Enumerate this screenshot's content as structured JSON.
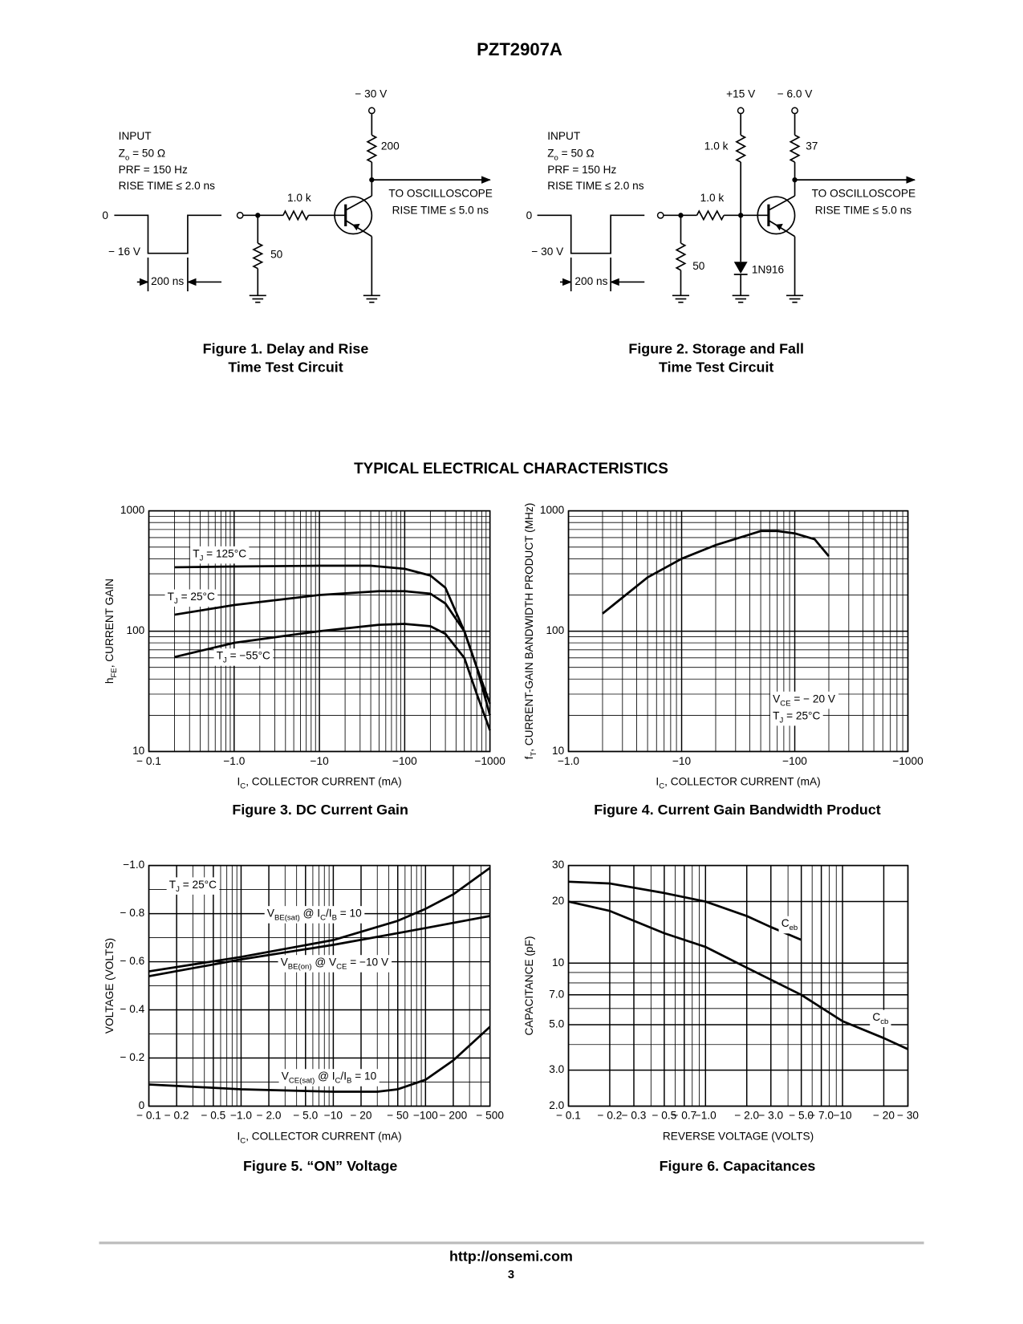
{
  "header": {
    "title": "PZT2907A"
  },
  "figure_1": {
    "supply": "− 30 V",
    "input": [
      "INPUT",
      [
        "Z",
        "o",
        " = 50 Ω"
      ],
      "PRF = 150 Hz",
      "RISE TIME ≤ 2.0 ns"
    ],
    "levels": [
      "0",
      "− 16 V"
    ],
    "pulse_width": "200 ns",
    "resistors": [
      "200",
      "1.0 k",
      "50"
    ],
    "output": [
      "TO OSCILLOSCOPE",
      "RISE TIME ≤ 5.0 ns"
    ],
    "caption": [
      "Figure 1. Delay and Rise",
      "Time Test Circuit"
    ]
  },
  "figure_2": {
    "supplies": [
      "+15 V",
      "− 6.0 V"
    ],
    "input": [
      "INPUT",
      [
        "Z",
        "o",
        " = 50 Ω"
      ],
      "PRF = 150 Hz",
      "RISE TIME ≤ 2.0 ns"
    ],
    "levels": [
      "0",
      "− 30 V"
    ],
    "pulse_width": "200 ns",
    "resistors": [
      "1.0 k",
      "37",
      "1.0 k",
      "50"
    ],
    "diode": "1N916",
    "output": [
      "TO OSCILLOSCOPE",
      "RISE TIME ≤ 5.0 ns"
    ],
    "caption": [
      "Figure 2. Storage and Fall",
      "Time Test Circuit"
    ]
  },
  "section_title": "TYPICAL ELECTRICAL CHARACTERISTICS",
  "chart_data": [
    {
      "type": "line",
      "caption": "Figure 3. DC Current Gain",
      "x_label": [
        "I",
        "C",
        ", COLLECTOR CURRENT (mA)"
      ],
      "y_label": [
        "h",
        "FE",
        ", CURRENT GAIN"
      ],
      "xscale": "log",
      "yscale": "log",
      "grid": true,
      "color": "#000000",
      "xlim": [
        -0.1,
        -1000
      ],
      "ylim": [
        10,
        1000
      ],
      "xticks": [
        {
          "value": -0.1,
          "label": "− 0.1"
        },
        {
          "value": -1.0,
          "label": "−1.0"
        },
        {
          "value": -10,
          "label": "−10"
        },
        {
          "value": -100,
          "label": "−100"
        },
        {
          "value": -1000,
          "label": "−1000"
        }
      ],
      "yticks": [
        10,
        100,
        1000
      ],
      "series": [
        {
          "label": [
            "T",
            "J",
            " = 125°C"
          ],
          "x": [
            -0.2,
            -1,
            -10,
            -40,
            -100,
            -200,
            -300,
            -500,
            -700,
            -1000
          ],
          "values": [
            340,
            345,
            350,
            350,
            330,
            290,
            230,
            100,
            50,
            20
          ]
        },
        {
          "label": [
            "T",
            "J",
            " = 25°C"
          ],
          "x": [
            -0.2,
            -1,
            -10,
            -50,
            -100,
            -200,
            -300,
            -500,
            -700,
            -1000
          ],
          "values": [
            137,
            165,
            200,
            215,
            215,
            205,
            170,
            100,
            50,
            25
          ]
        },
        {
          "label": [
            "T",
            "J",
            " = −55°C"
          ],
          "x": [
            -0.2,
            -1,
            -10,
            -50,
            -100,
            -200,
            -300,
            -500,
            -700,
            -1000
          ],
          "values": [
            61,
            80,
            100,
            113,
            115,
            110,
            95,
            60,
            30,
            15
          ]
        }
      ]
    },
    {
      "type": "line",
      "caption": "Figure 4. Current Gain Bandwidth Product",
      "x_label": [
        "I",
        "C",
        ", COLLECTOR CURRENT (mA)"
      ],
      "y_label": [
        "f",
        "T",
        ", CURRENT-GAIN BANDWIDTH PRODUCT (MHz)"
      ],
      "xscale": "log",
      "yscale": "log",
      "grid": true,
      "color": "#000000",
      "xlim": [
        -1.0,
        -1000
      ],
      "ylim": [
        10,
        1000
      ],
      "xticks": [
        {
          "value": -1.0,
          "label": "−1.0"
        },
        {
          "value": -10,
          "label": "−10"
        },
        {
          "value": -100,
          "label": "−100"
        },
        {
          "value": -1000,
          "label": "−1000"
        }
      ],
      "yticks": [
        10,
        100,
        1000
      ],
      "annotations": [
        [
          "V",
          "CE",
          " = − 20 V"
        ],
        [
          "T",
          "J",
          " = 25°C"
        ]
      ],
      "series": [
        {
          "x": [
            -2,
            -5,
            -10,
            -20,
            -50,
            -70,
            -100,
            -150,
            -200
          ],
          "values": [
            140,
            280,
            400,
            520,
            680,
            680,
            650,
            580,
            420
          ]
        }
      ]
    },
    {
      "type": "line",
      "caption": "Figure 5. “ON” Voltage",
      "x_label": [
        "I",
        "C",
        ", COLLECTOR CURRENT (mA)"
      ],
      "y_label": [
        "VOLTAGE (VOLTS)"
      ],
      "xscale": "log",
      "yscale": "linear",
      "grid": true,
      "color": "#000000",
      "xlim": [
        -0.1,
        -500
      ],
      "ylim": [
        0,
        -1.0
      ],
      "xticks": [
        {
          "value": -0.1,
          "label": "− 0.1"
        },
        {
          "value": -0.2,
          "label": "− 0.2"
        },
        {
          "value": -0.5,
          "label": "− 0.5"
        },
        {
          "value": -1.0,
          "label": "−1.0"
        },
        {
          "value": -2.0,
          "label": "− 2.0"
        },
        {
          "value": -5.0,
          "label": "− 5.0"
        },
        {
          "value": -10,
          "label": "−10"
        },
        {
          "value": -20,
          "label": "− 20"
        },
        {
          "value": -50,
          "label": "− 50"
        },
        {
          "value": -100,
          "label": "−100"
        },
        {
          "value": -200,
          "label": "− 200"
        },
        {
          "value": -500,
          "label": "− 500"
        }
      ],
      "yticks": [
        0,
        {
          "value": -0.2,
          "label": "− 0.2"
        },
        {
          "value": -0.4,
          "label": "− 0.4"
        },
        {
          "value": -0.6,
          "label": "− 0.6"
        },
        {
          "value": -0.8,
          "label": "− 0.8"
        },
        {
          "value": -1.0,
          "label": "−1.0"
        }
      ],
      "annotations": [
        [
          "T",
          "J",
          " = 25°C"
        ]
      ],
      "series": [
        {
          "label": [
            "V",
            "BE(sat)",
            " @ I",
            "C",
            "/I",
            "B",
            " = 10"
          ],
          "x": [
            -0.1,
            -1,
            -10,
            -50,
            -100,
            -200,
            -500
          ],
          "values": [
            -0.56,
            -0.62,
            -0.69,
            -0.77,
            -0.82,
            -0.88,
            -0.99
          ]
        },
        {
          "label": [
            "V",
            "BE(on)",
            " @ V",
            "CE",
            " = −10 V"
          ],
          "x": [
            -0.1,
            -1,
            -10,
            -100,
            -500
          ],
          "values": [
            -0.54,
            -0.61,
            -0.67,
            -0.74,
            -0.79
          ]
        },
        {
          "label": [
            "V",
            "CE(sat)",
            " @ I",
            "C",
            "/I",
            "B",
            " = 10"
          ],
          "x": [
            -0.1,
            -1,
            -10,
            -30,
            -50,
            -100,
            -200,
            -500
          ],
          "values": [
            -0.09,
            -0.07,
            -0.06,
            -0.06,
            -0.07,
            -0.11,
            -0.19,
            -0.33
          ]
        }
      ]
    },
    {
      "type": "line",
      "caption": "Figure 6. Capacitances",
      "x_label": [
        "REVERSE VOLTAGE (VOLTS)"
      ],
      "y_label": [
        "CAPACITANCE (pF)"
      ],
      "xscale": "log",
      "yscale": "log",
      "grid": true,
      "color": "#000000",
      "xlim": [
        -0.1,
        -30
      ],
      "ylim": [
        2.0,
        30
      ],
      "xticks": [
        {
          "value": -0.1,
          "label": "− 0.1"
        },
        {
          "value": -0.2,
          "label": "− 0.2"
        },
        {
          "value": -0.3,
          "label": "− 0.3"
        },
        {
          "value": -0.5,
          "label": "− 0.5"
        },
        {
          "value": -0.7,
          "label": "− 0.7"
        },
        {
          "value": -1.0,
          "label": "−1.0"
        },
        {
          "value": -2.0,
          "label": "− 2.0"
        },
        {
          "value": -3.0,
          "label": "− 3.0"
        },
        {
          "value": -5.0,
          "label": "− 5.0"
        },
        {
          "value": -7.0,
          "label": "− 7.0"
        },
        {
          "value": -10,
          "label": "−10"
        },
        {
          "value": -20,
          "label": "− 20"
        },
        {
          "value": -30,
          "label": "− 30"
        }
      ],
      "yticks": [
        {
          "value": 2.0,
          "label": "2.0"
        },
        {
          "value": 3.0,
          "label": "3.0"
        },
        {
          "value": 5.0,
          "label": "5.0"
        },
        {
          "value": 7.0,
          "label": "7.0"
        },
        10,
        20,
        30
      ],
      "series": [
        {
          "label": [
            "C",
            "eb"
          ],
          "x": [
            -0.1,
            -0.2,
            -0.5,
            -1,
            -2,
            -3,
            -5
          ],
          "values": [
            25,
            24.5,
            22,
            20,
            17,
            15,
            13
          ]
        },
        {
          "label": [
            "C",
            "cb"
          ],
          "x": [
            -0.1,
            -0.2,
            -0.5,
            -1,
            -2,
            -5,
            -10,
            -20,
            -30
          ],
          "values": [
            20,
            18,
            14,
            12,
            9.5,
            7,
            5.2,
            4.3,
            3.8
          ]
        }
      ]
    }
  ],
  "footer": {
    "url": "http://onsemi.com",
    "page": "3"
  }
}
